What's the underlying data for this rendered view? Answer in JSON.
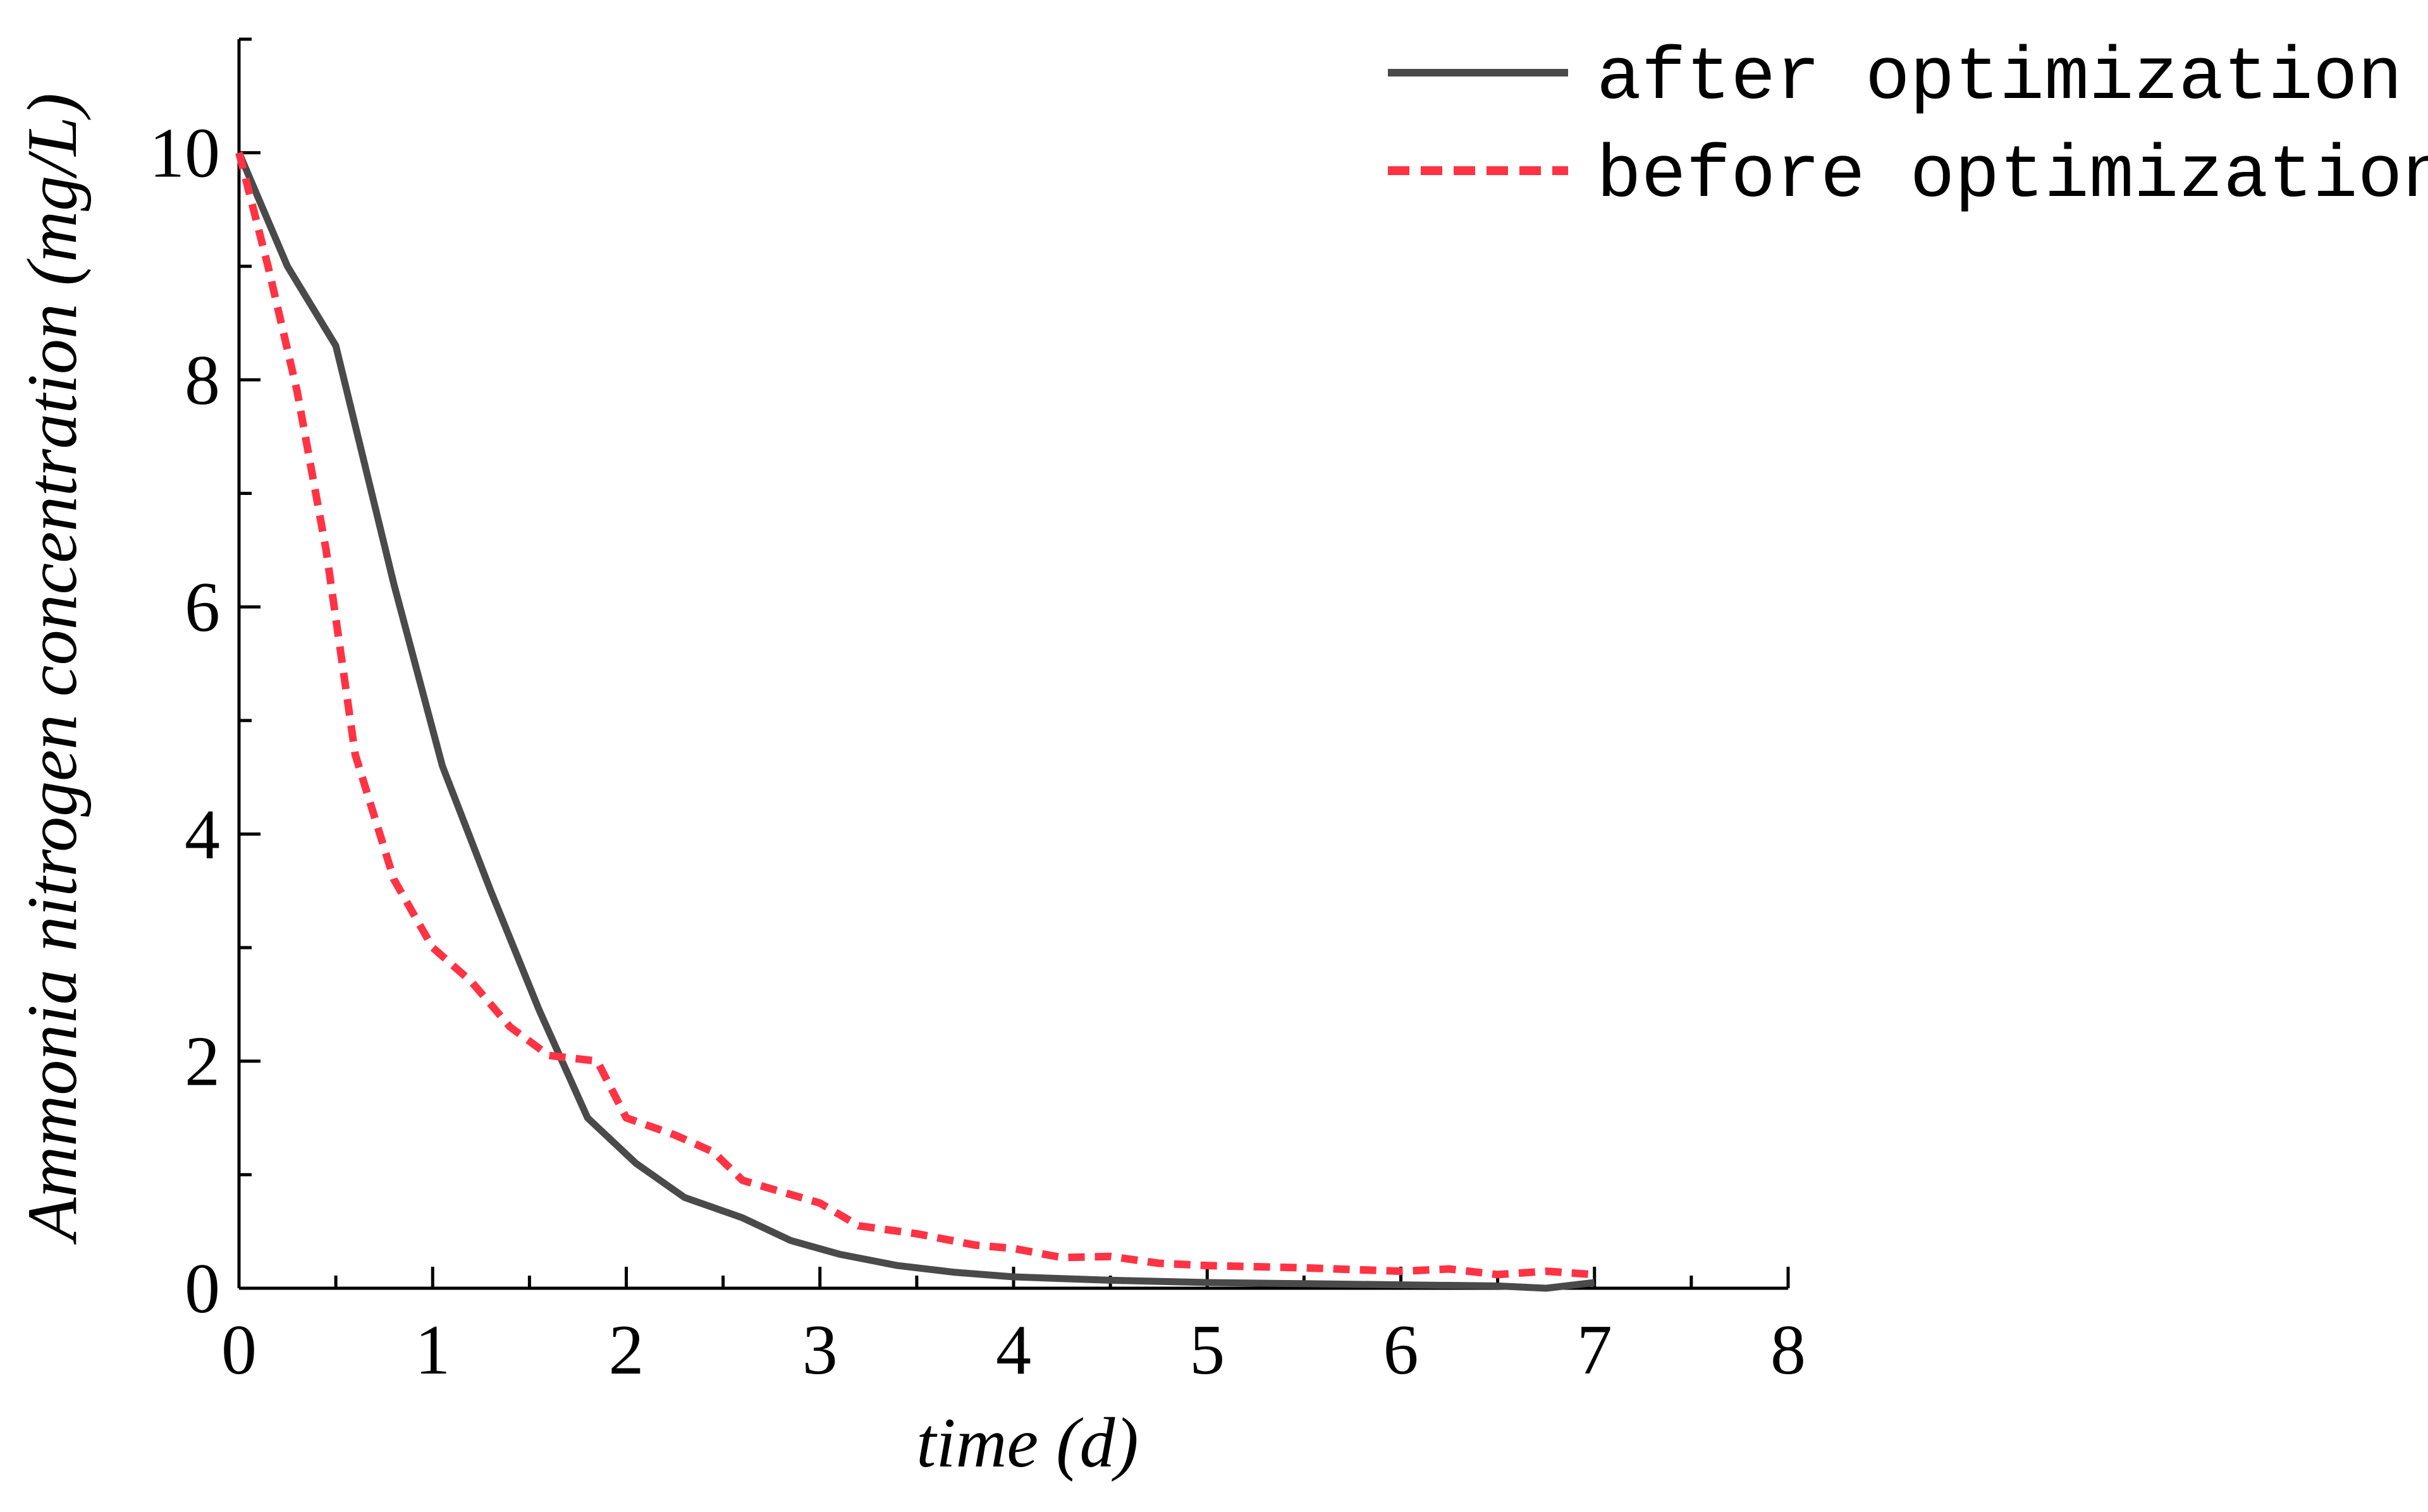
{
  "chart_data": {
    "type": "line",
    "title": "",
    "xlabel": "time (d)",
    "ylabel": "Ammonia nitrogen concentration (mg/L)",
    "xlim": [
      0,
      8
    ],
    "ylim": [
      0,
      11
    ],
    "xticks": [
      "0",
      "1",
      "2",
      "3",
      "4",
      "5",
      "6",
      "7",
      "8"
    ],
    "yticks": [
      "0",
      "2",
      "4",
      "6",
      "8",
      "10"
    ],
    "grid": false,
    "legend_position": "top-right",
    "series": [
      {
        "name": "after optimization",
        "color": "#4a4a4a",
        "style": "solid",
        "x": [
          0,
          0.25,
          0.5,
          0.8,
          1.05,
          1.3,
          1.55,
          1.8,
          2.05,
          2.3,
          2.6,
          2.85,
          3.1,
          3.4,
          3.7,
          4.0,
          4.5,
          5.0,
          5.5,
          6.0,
          6.5,
          6.75,
          7.0
        ],
        "y": [
          10,
          9.0,
          8.3,
          6.2,
          4.6,
          3.5,
          2.45,
          1.5,
          1.1,
          0.8,
          0.62,
          0.42,
          0.3,
          0.2,
          0.14,
          0.1,
          0.07,
          0.05,
          0.04,
          0.03,
          0.02,
          0.0,
          0.05
        ]
      },
      {
        "name": "before optimization",
        "color": "#ff3344",
        "style": "dashed",
        "x": [
          0,
          0.15,
          0.3,
          0.45,
          0.6,
          0.8,
          1.0,
          1.2,
          1.4,
          1.6,
          1.85,
          2.0,
          2.25,
          2.45,
          2.6,
          2.8,
          3.0,
          3.2,
          3.5,
          3.8,
          4.0,
          4.25,
          4.5,
          4.75,
          5.0,
          5.5,
          6.0,
          6.25,
          6.5,
          6.75,
          7.0
        ],
        "y": [
          10,
          9.0,
          7.9,
          6.5,
          4.7,
          3.6,
          3.0,
          2.7,
          2.3,
          2.05,
          2.0,
          1.5,
          1.35,
          1.2,
          0.95,
          0.85,
          0.75,
          0.55,
          0.48,
          0.38,
          0.35,
          0.27,
          0.28,
          0.22,
          0.2,
          0.18,
          0.15,
          0.17,
          0.12,
          0.15,
          0.12
        ]
      }
    ]
  }
}
